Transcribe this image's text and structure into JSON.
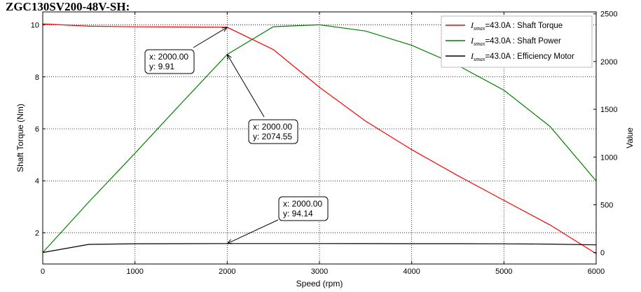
{
  "chart_data": {
    "type": "line",
    "title": "ZGC130SV200-48V-SH:",
    "xlabel": "Speed  (rpm)",
    "ylabel_left": "Shaft Torque  (Nm)",
    "ylabel_right": "Value",
    "xlim": [
      0,
      6000
    ],
    "ylim_left": [
      0.8,
      10.5
    ],
    "ylim_right": [
      -120,
      2520
    ],
    "x_ticks": [
      "0",
      "1000",
      "2000",
      "3000",
      "4000",
      "5000",
      "6000"
    ],
    "y_left_ticks": [
      "2",
      "4",
      "6",
      "8",
      "10"
    ],
    "y_right_ticks": [
      "0",
      "500",
      "1000",
      "1500",
      "2000",
      "2500"
    ],
    "grid": true,
    "legend_position": "top-right",
    "x": [
      0,
      500,
      1000,
      1500,
      2000,
      2500,
      3000,
      3500,
      4000,
      4500,
      5000,
      5500,
      6000
    ],
    "series": [
      {
        "name_prefix": "I",
        "name_sub": "smax",
        "name_rest": "=43.0A : Shaft Torque",
        "color": "#ff0000",
        "axis": "left",
        "values": [
          10.04,
          9.95,
          9.93,
          9.92,
          9.91,
          9.05,
          7.6,
          6.3,
          5.2,
          4.2,
          3.25,
          2.3,
          1.2
        ]
      },
      {
        "name_prefix": "I",
        "name_sub": "smax",
        "name_rest": "=43.0A : Shaft Power",
        "color": "#008000",
        "axis": "right",
        "values": [
          0,
          530,
          1040,
          1560,
          2074.55,
          2365,
          2385,
          2320,
          2170,
          1960,
          1700,
          1320,
          750
        ]
      },
      {
        "name_prefix": "I",
        "name_sub": "smax",
        "name_rest": "=43.0A : Efficiency Motor",
        "color": "#000000",
        "axis": "right",
        "values": [
          0,
          85,
          92,
          93,
          94.14,
          94,
          93.8,
          93.5,
          93,
          92.5,
          91.5,
          88,
          80
        ]
      }
    ],
    "annotations": [
      {
        "label_x": "x: 2000.00",
        "label_y": "y: 9.91",
        "point_x": 2000,
        "point_y": 9.91,
        "axis": "left"
      },
      {
        "label_x": "x: 2000.00",
        "label_y": "y: 2074.55",
        "point_x": 2000,
        "point_y": 2074.55,
        "axis": "right"
      },
      {
        "label_x": "x: 2000.00",
        "label_y": "y: 94.14",
        "point_x": 2000,
        "point_y": 94.14,
        "axis": "right"
      }
    ]
  }
}
